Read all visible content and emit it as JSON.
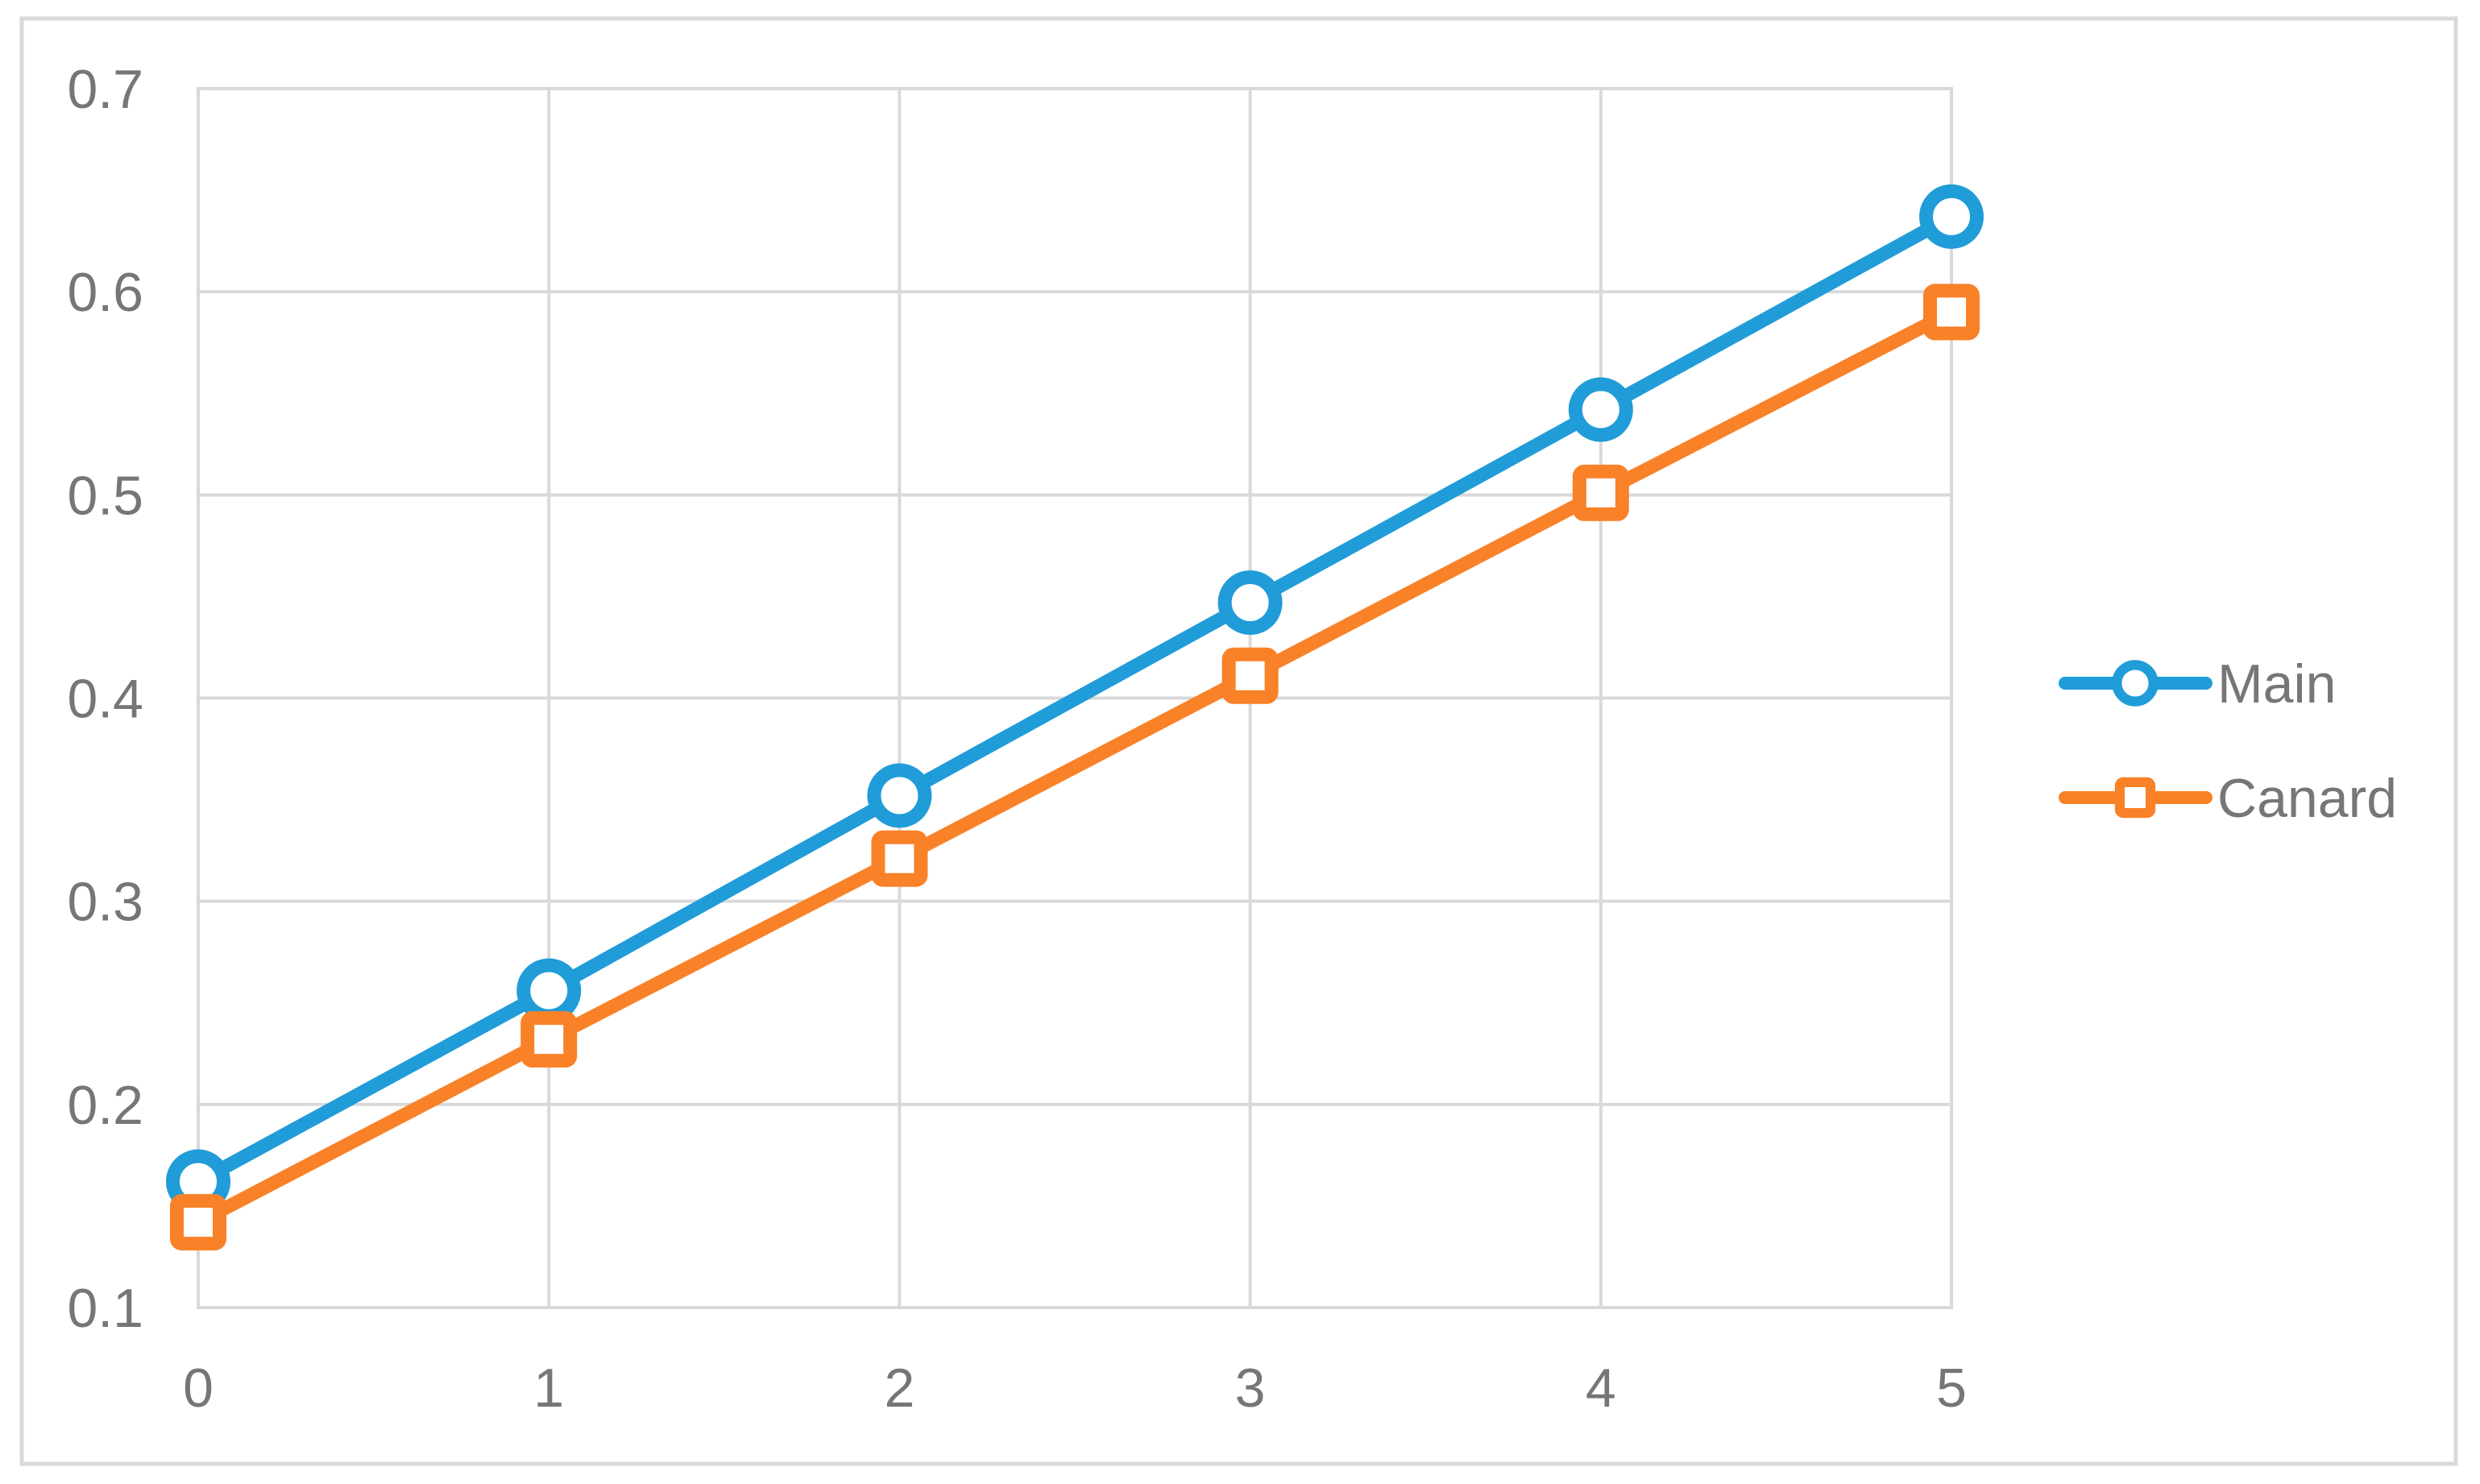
{
  "chart_data": {
    "type": "line",
    "x": [
      0,
      1,
      2,
      3,
      4,
      5
    ],
    "series": [
      {
        "name": "Main",
        "marker": "circle",
        "color": "#209CD8",
        "values": [
          0.162,
          0.256,
          0.352,
          0.447,
          0.542,
          0.637
        ]
      },
      {
        "name": "Canard",
        "marker": "square",
        "color": "#F98127",
        "values": [
          0.142,
          0.232,
          0.321,
          0.411,
          0.501,
          0.59
        ]
      }
    ],
    "title": "",
    "xlabel": "",
    "ylabel": "",
    "xlim": [
      0,
      5
    ],
    "ylim": [
      0.1,
      0.7
    ],
    "x_tick_labels": [
      "0",
      "1",
      "2",
      "3",
      "4",
      "5"
    ],
    "y_tick_labels": [
      "0.1",
      "0.2",
      "0.3",
      "0.4",
      "0.5",
      "0.6",
      "0.7"
    ],
    "grid": true,
    "legend_position": "right-middle",
    "legend_items": [
      "Main",
      "Canard"
    ],
    "colors": {
      "grid": "#D9D9D9",
      "plot_border": "#D9D9D9",
      "outer_border": "#D9D9D9",
      "axis_text": "#767676",
      "legend_text": "#767676",
      "marker_fill": "#FFFFFF",
      "background": "#FFFFFF"
    }
  }
}
